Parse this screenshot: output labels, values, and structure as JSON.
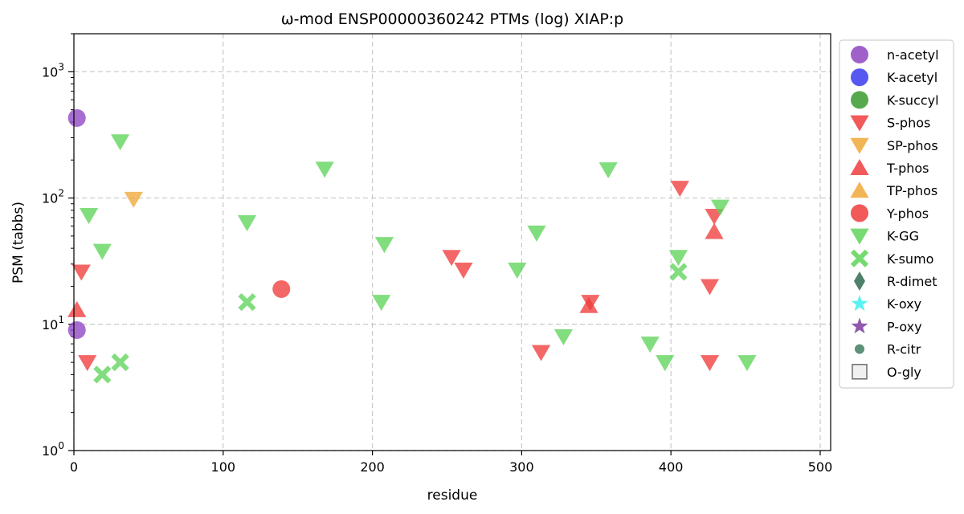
{
  "chart_data": {
    "type": "scatter",
    "title": "ω-mod ENSP00000360242 PTMs (log) XIAP:p",
    "xlabel": "residue",
    "ylabel": "PSM (tabbs)",
    "xlim": [
      0,
      507
    ],
    "ylim": [
      1,
      2000
    ],
    "yscale": "log",
    "grid": true,
    "legend_position": "right-outside",
    "x_ticks": [
      0,
      100,
      200,
      300,
      400,
      500
    ],
    "y_ticks": [
      {
        "value": 1,
        "base": "10",
        "exp": "0"
      },
      {
        "value": 10,
        "base": "10",
        "exp": "1"
      },
      {
        "value": 100,
        "base": "10",
        "exp": "2"
      },
      {
        "value": 1000,
        "base": "10",
        "exp": "3"
      }
    ],
    "series": [
      {
        "name": "n-acetyl",
        "marker": "circle",
        "color": "#8e44c1",
        "points": [
          [
            2,
            430
          ],
          [
            2,
            9
          ]
        ]
      },
      {
        "name": "K-acetyl",
        "marker": "circle",
        "color": "#3a3af0",
        "points": []
      },
      {
        "name": "K-succyl",
        "marker": "circle",
        "color": "#3a9a2e",
        "points": []
      },
      {
        "name": "S-phos",
        "marker": "triangle-down",
        "color": "#f03c3c",
        "points": [
          [
            5,
            26
          ],
          [
            9,
            5
          ],
          [
            253,
            34
          ],
          [
            261,
            27
          ],
          [
            313,
            6
          ],
          [
            346,
            15
          ],
          [
            406,
            120
          ],
          [
            426,
            20
          ],
          [
            426,
            5
          ],
          [
            429,
            72
          ]
        ]
      },
      {
        "name": "SP-phos",
        "marker": "triangle-down",
        "color": "#f0a838",
        "points": [
          [
            40,
            98
          ]
        ]
      },
      {
        "name": "T-phos",
        "marker": "triangle-up",
        "color": "#f03c3c",
        "points": [
          [
            2,
            13
          ],
          [
            345,
            14
          ],
          [
            429,
            54
          ]
        ]
      },
      {
        "name": "TP-phos",
        "marker": "triangle-up",
        "color": "#f0a838",
        "points": []
      },
      {
        "name": "Y-phos",
        "marker": "circle",
        "color": "#f03c3c",
        "points": [
          [
            139,
            19
          ]
        ]
      },
      {
        "name": "K-GG",
        "marker": "triangle-down",
        "color": "#5fd45a",
        "points": [
          [
            31,
            280
          ],
          [
            10,
            73
          ],
          [
            19,
            38
          ],
          [
            116,
            64
          ],
          [
            168,
            170
          ],
          [
            208,
            43
          ],
          [
            206,
            15
          ],
          [
            297,
            27
          ],
          [
            310,
            53
          ],
          [
            328,
            8
          ],
          [
            358,
            168
          ],
          [
            386,
            7
          ],
          [
            396,
            5
          ],
          [
            405,
            34
          ],
          [
            433,
            85
          ],
          [
            451,
            5
          ]
        ]
      },
      {
        "name": "K-sumo",
        "marker": "x",
        "color": "#5fd45a",
        "points": [
          [
            116,
            15
          ],
          [
            19,
            4
          ],
          [
            31,
            5
          ],
          [
            405,
            26
          ]
        ]
      },
      {
        "name": "R-dimet",
        "marker": "diamond",
        "color": "#2f6b4f",
        "points": []
      },
      {
        "name": "K-oxy",
        "marker": "star",
        "color": "#3ff0f0",
        "points": []
      },
      {
        "name": "P-oxy",
        "marker": "star",
        "color": "#7d3ca0",
        "points": []
      },
      {
        "name": "R-citr",
        "marker": "small-circle",
        "color": "#3f7f5f",
        "points": []
      },
      {
        "name": "O-gly",
        "marker": "square-open",
        "color": "#555555",
        "points": []
      }
    ]
  }
}
